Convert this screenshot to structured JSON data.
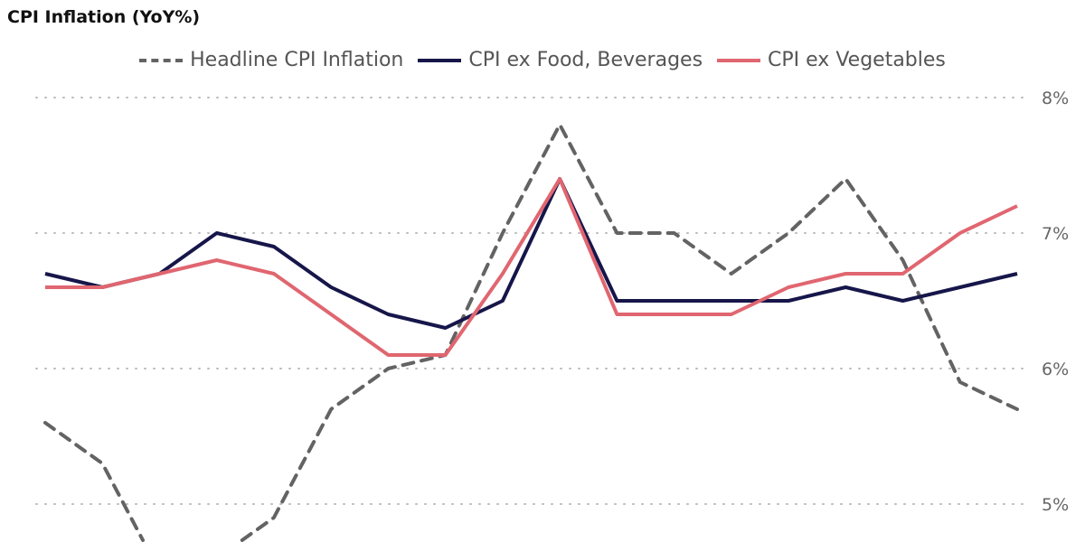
{
  "chart_data": {
    "type": "line",
    "title": "CPI Inflation (YoY%)",
    "xlabel": "",
    "ylabel": "",
    "x": [
      1,
      2,
      3,
      4,
      5,
      6,
      7,
      8,
      9,
      10,
      11,
      12,
      13,
      14,
      15,
      16,
      17,
      18
    ],
    "ylim": [
      4.73,
      8.3
    ],
    "yticks": [
      5,
      6,
      7,
      8
    ],
    "ytick_labels": [
      "5%",
      "6%",
      "7%",
      "8%"
    ],
    "grid": "horizontal dotted",
    "legend": "top-center",
    "series": [
      {
        "name": "Headline CPI Inflation",
        "color": "#636363",
        "dash": true,
        "values": [
          5.6,
          5.3,
          4.5,
          4.6,
          4.9,
          5.7,
          6.0,
          6.1,
          7.0,
          7.8,
          7.0,
          7.0,
          6.7,
          7.0,
          7.4,
          6.8,
          5.9,
          5.7
        ]
      },
      {
        "name": "CPI ex Food, Beverages",
        "color": "#16164a",
        "dash": false,
        "values": [
          6.7,
          6.6,
          6.7,
          7.0,
          6.9,
          6.6,
          6.4,
          6.3,
          6.5,
          7.4,
          6.5,
          6.5,
          6.5,
          6.5,
          6.6,
          6.5,
          6.6,
          6.7
        ]
      },
      {
        "name": "CPI ex Vegetables",
        "color": "#e06670",
        "dash": false,
        "values": [
          6.6,
          6.6,
          6.7,
          6.8,
          6.7,
          6.4,
          6.1,
          6.1,
          6.7,
          7.4,
          6.4,
          6.4,
          6.4,
          6.6,
          6.7,
          6.7,
          7.0,
          7.2
        ]
      }
    ]
  }
}
